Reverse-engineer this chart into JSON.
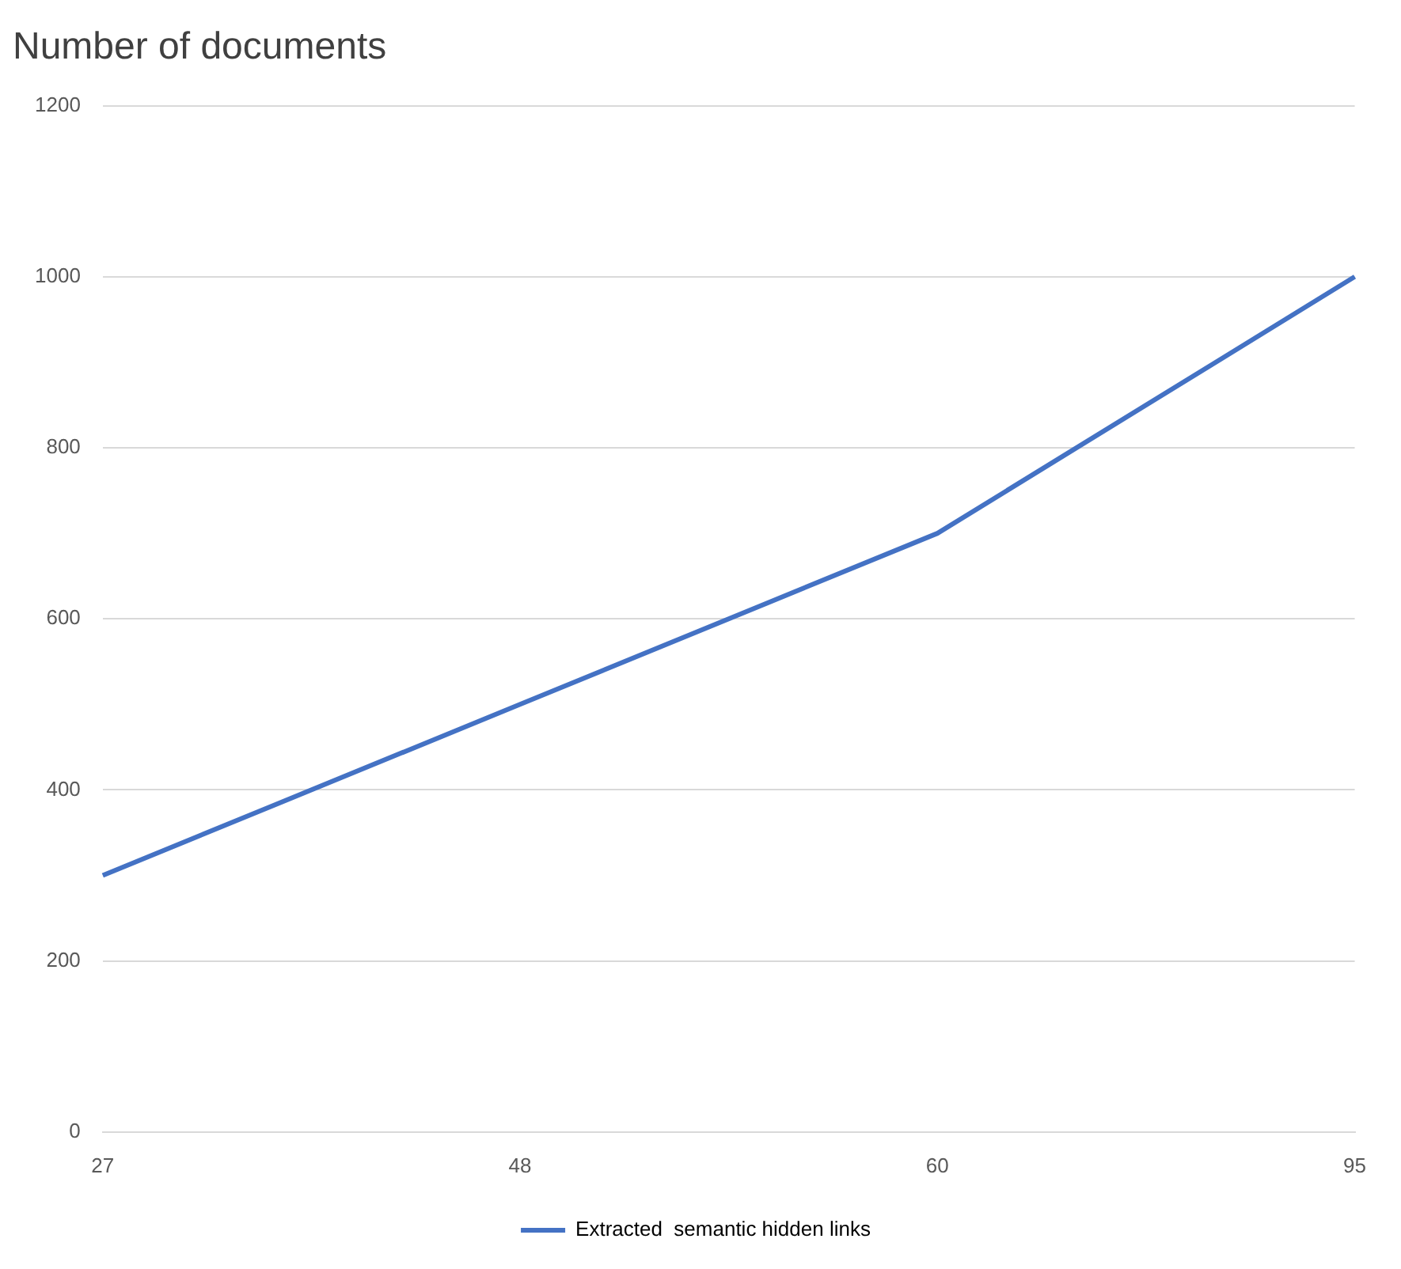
{
  "chart_data": {
    "type": "line",
    "title": "Number of documents",
    "categories": [
      "27",
      "48",
      "60",
      "95"
    ],
    "series": [
      {
        "name": "Extracted  semantic hidden links",
        "color": "#4472c4",
        "values": [
          300,
          500,
          700,
          1000
        ]
      }
    ],
    "ylim": [
      0,
      1200
    ],
    "yticks": [
      0,
      200,
      400,
      600,
      800,
      1000,
      1200
    ],
    "grid": "y",
    "legend": "bottom",
    "marker": "none",
    "line_style": "solid"
  }
}
